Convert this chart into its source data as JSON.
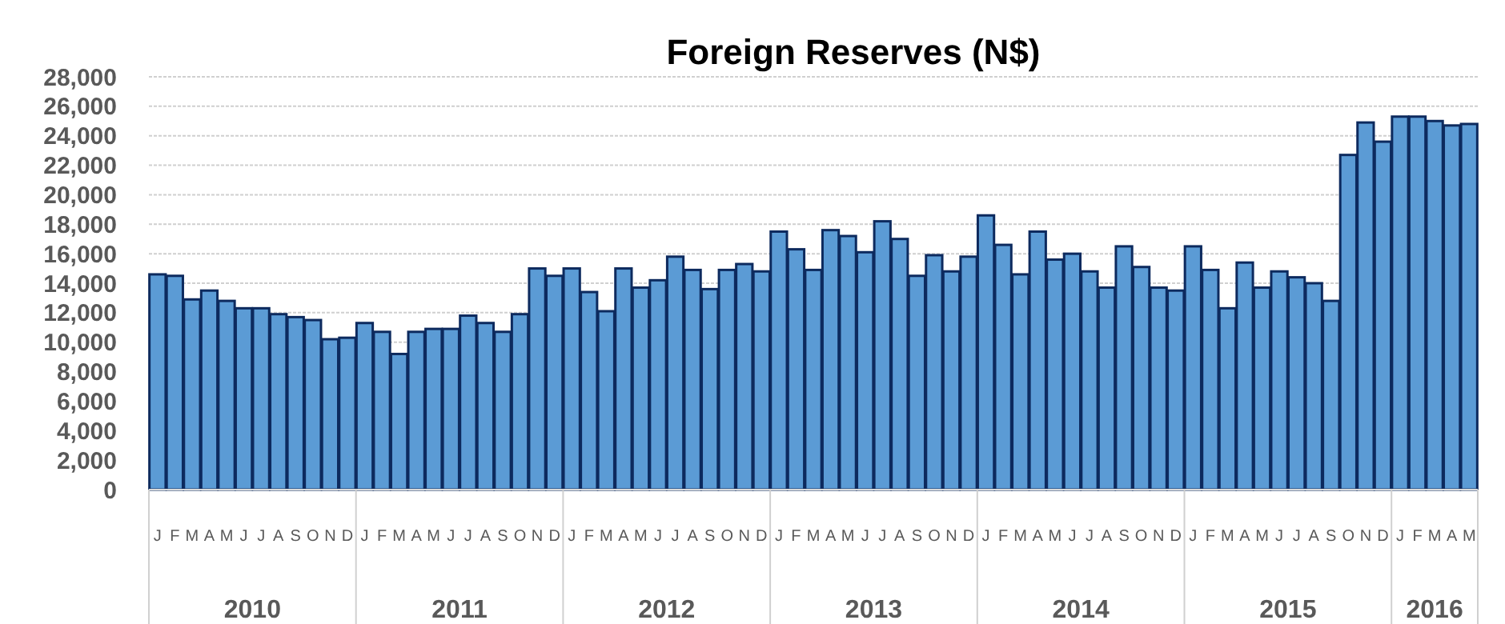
{
  "chart_data": {
    "type": "bar",
    "title": "Foreign Reserves (N$)",
    "categories": [
      "J",
      "F",
      "M",
      "A",
      "M",
      "J",
      "J",
      "A",
      "S",
      "O",
      "N",
      "D",
      "J",
      "F",
      "M",
      "A",
      "M",
      "J",
      "J",
      "A",
      "S",
      "O",
      "N",
      "D",
      "J",
      "F",
      "M",
      "A",
      "M",
      "J",
      "J",
      "A",
      "S",
      "O",
      "N",
      "D",
      "J",
      "F",
      "M",
      "A",
      "M",
      "J",
      "J",
      "A",
      "S",
      "O",
      "N",
      "D",
      "J",
      "F",
      "M",
      "A",
      "M",
      "J",
      "J",
      "A",
      "S",
      "O",
      "N",
      "D",
      "J",
      "F",
      "M",
      "A",
      "M",
      "J",
      "J",
      "A",
      "S",
      "O",
      "N",
      "D",
      "J",
      "F",
      "M",
      "A",
      "M"
    ],
    "values": [
      14600,
      14500,
      12900,
      13500,
      12800,
      12300,
      12300,
      11900,
      11700,
      11500,
      10200,
      10300,
      11300,
      10700,
      9200,
      10700,
      10900,
      10900,
      11800,
      11300,
      10700,
      11900,
      15000,
      14500,
      15000,
      13400,
      12100,
      15000,
      13700,
      14200,
      15800,
      14900,
      13600,
      14900,
      15300,
      14800,
      17500,
      16300,
      14900,
      17600,
      17200,
      16100,
      18200,
      17000,
      14500,
      15900,
      14800,
      15800,
      18600,
      16600,
      14600,
      17500,
      15600,
      16000,
      14800,
      13700,
      16500,
      15100,
      13700,
      13500,
      16500,
      14900,
      12300,
      15400,
      13700,
      14800,
      14400,
      14000,
      12800,
      22700,
      24900,
      23600,
      25300,
      25300,
      25000,
      24700,
      24800
    ],
    "color": "#5b9bd5",
    "annotations": [
      "2010",
      "2011",
      "2012",
      "2013",
      "2014",
      "2015",
      "2016"
    ],
    "ylim": [
      0,
      28000
    ],
    "yticks": [
      {
        "value": 0,
        "label": "0"
      },
      {
        "value": 2000,
        "label": "2,000"
      },
      {
        "value": 4000,
        "label": "4,000"
      },
      {
        "value": 6000,
        "label": "6,000"
      },
      {
        "value": 8000,
        "label": "8,000"
      },
      {
        "value": 10000,
        "label": "10,000"
      },
      {
        "value": 12000,
        "label": "12,000"
      },
      {
        "value": 14000,
        "label": "14,000"
      },
      {
        "value": 16000,
        "label": "16,000"
      },
      {
        "value": 18000,
        "label": "18,000"
      },
      {
        "value": 20000,
        "label": "20,000"
      },
      {
        "value": 22000,
        "label": "22,000"
      },
      {
        "value": 24000,
        "label": "24,000"
      },
      {
        "value": 26000,
        "label": "26,000"
      },
      {
        "value": 28000,
        "label": "28,000"
      }
    ],
    "grid": "y"
  }
}
